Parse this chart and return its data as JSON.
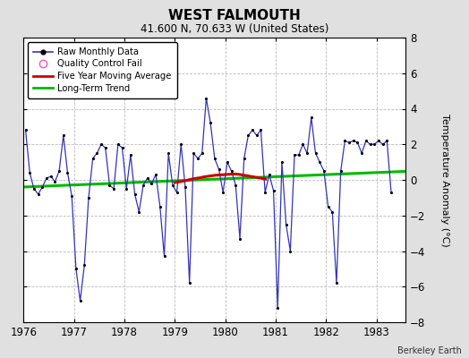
{
  "title": "WEST FALMOUTH",
  "subtitle": "41.600 N, 70.633 W (United States)",
  "credit": "Berkeley Earth",
  "ylabel": "Temperature Anomaly (°C)",
  "xlim": [
    1976.0,
    1983.58
  ],
  "ylim": [
    -8,
    8
  ],
  "yticks": [
    -8,
    -6,
    -4,
    -2,
    0,
    2,
    4,
    6,
    8
  ],
  "xticks": [
    1976,
    1977,
    1978,
    1979,
    1980,
    1981,
    1982,
    1983
  ],
  "bg_color": "#e0e0e0",
  "plot_bg_color": "#ffffff",
  "raw_color": "#3333bb",
  "trend_color": "#00bb00",
  "ma_color": "#cc0000",
  "raw_monthly": [
    [
      1976.042,
      2.8
    ],
    [
      1976.125,
      0.4
    ],
    [
      1976.208,
      -0.5
    ],
    [
      1976.292,
      -0.8
    ],
    [
      1976.375,
      -0.4
    ],
    [
      1976.458,
      0.1
    ],
    [
      1976.542,
      0.2
    ],
    [
      1976.625,
      -0.1
    ],
    [
      1976.708,
      0.5
    ],
    [
      1976.792,
      2.5
    ],
    [
      1976.875,
      0.4
    ],
    [
      1976.958,
      -0.9
    ],
    [
      1977.042,
      -5.0
    ],
    [
      1977.125,
      -6.8
    ],
    [
      1977.208,
      -4.8
    ],
    [
      1977.292,
      -1.0
    ],
    [
      1977.375,
      1.2
    ],
    [
      1977.458,
      1.5
    ],
    [
      1977.542,
      2.0
    ],
    [
      1977.625,
      1.8
    ],
    [
      1977.708,
      -0.3
    ],
    [
      1977.792,
      -0.5
    ],
    [
      1977.875,
      2.0
    ],
    [
      1977.958,
      1.8
    ],
    [
      1978.042,
      -0.5
    ],
    [
      1978.125,
      1.4
    ],
    [
      1978.208,
      -0.8
    ],
    [
      1978.292,
      -1.8
    ],
    [
      1978.375,
      -0.3
    ],
    [
      1978.458,
      0.1
    ],
    [
      1978.542,
      -0.2
    ],
    [
      1978.625,
      0.3
    ],
    [
      1978.708,
      -1.5
    ],
    [
      1978.792,
      -4.3
    ],
    [
      1978.875,
      1.5
    ],
    [
      1978.958,
      -0.3
    ],
    [
      1979.042,
      -0.7
    ],
    [
      1979.125,
      2.0
    ],
    [
      1979.208,
      -0.4
    ],
    [
      1979.292,
      -5.8
    ],
    [
      1979.375,
      1.5
    ],
    [
      1979.458,
      1.2
    ],
    [
      1979.542,
      1.5
    ],
    [
      1979.625,
      4.6
    ],
    [
      1979.708,
      3.2
    ],
    [
      1979.792,
      1.2
    ],
    [
      1979.875,
      0.6
    ],
    [
      1979.958,
      -0.7
    ],
    [
      1980.042,
      1.0
    ],
    [
      1980.125,
      0.5
    ],
    [
      1980.208,
      -0.3
    ],
    [
      1980.292,
      -3.3
    ],
    [
      1980.375,
      1.2
    ],
    [
      1980.458,
      2.5
    ],
    [
      1980.542,
      2.8
    ],
    [
      1980.625,
      2.5
    ],
    [
      1980.708,
      2.8
    ],
    [
      1980.792,
      -0.7
    ],
    [
      1980.875,
      0.3
    ],
    [
      1980.958,
      -0.6
    ],
    [
      1981.042,
      -7.2
    ],
    [
      1981.125,
      1.0
    ],
    [
      1981.208,
      -2.5
    ],
    [
      1981.292,
      -4.0
    ],
    [
      1981.375,
      1.4
    ],
    [
      1981.458,
      1.4
    ],
    [
      1981.542,
      2.0
    ],
    [
      1981.625,
      1.5
    ],
    [
      1981.708,
      3.5
    ],
    [
      1981.792,
      1.5
    ],
    [
      1981.875,
      1.0
    ],
    [
      1981.958,
      0.5
    ],
    [
      1982.042,
      -1.5
    ],
    [
      1982.125,
      -1.8
    ],
    [
      1982.208,
      -5.8
    ],
    [
      1982.292,
      0.5
    ],
    [
      1982.375,
      2.2
    ],
    [
      1982.458,
      2.1
    ],
    [
      1982.542,
      2.2
    ],
    [
      1982.625,
      2.1
    ],
    [
      1982.708,
      1.5
    ],
    [
      1982.792,
      2.2
    ],
    [
      1982.875,
      2.0
    ],
    [
      1982.958,
      2.0
    ],
    [
      1983.042,
      2.2
    ],
    [
      1983.125,
      2.0
    ],
    [
      1983.208,
      2.2
    ],
    [
      1983.292,
      -0.7
    ]
  ],
  "moving_avg": [
    [
      1979.0,
      -0.15
    ],
    [
      1979.1,
      -0.1
    ],
    [
      1979.2,
      -0.05
    ],
    [
      1979.3,
      0.02
    ],
    [
      1979.4,
      0.08
    ],
    [
      1979.5,
      0.12
    ],
    [
      1979.6,
      0.18
    ],
    [
      1979.7,
      0.22
    ],
    [
      1979.8,
      0.26
    ],
    [
      1979.9,
      0.28
    ],
    [
      1980.0,
      0.3
    ],
    [
      1980.1,
      0.32
    ],
    [
      1980.2,
      0.33
    ],
    [
      1980.3,
      0.3
    ],
    [
      1980.4,
      0.25
    ],
    [
      1980.5,
      0.2
    ],
    [
      1980.6,
      0.15
    ],
    [
      1980.7,
      0.1
    ],
    [
      1980.8,
      0.05
    ]
  ],
  "trend_x": [
    1976.0,
    1983.58
  ],
  "trend_y": [
    -0.4,
    0.48
  ]
}
